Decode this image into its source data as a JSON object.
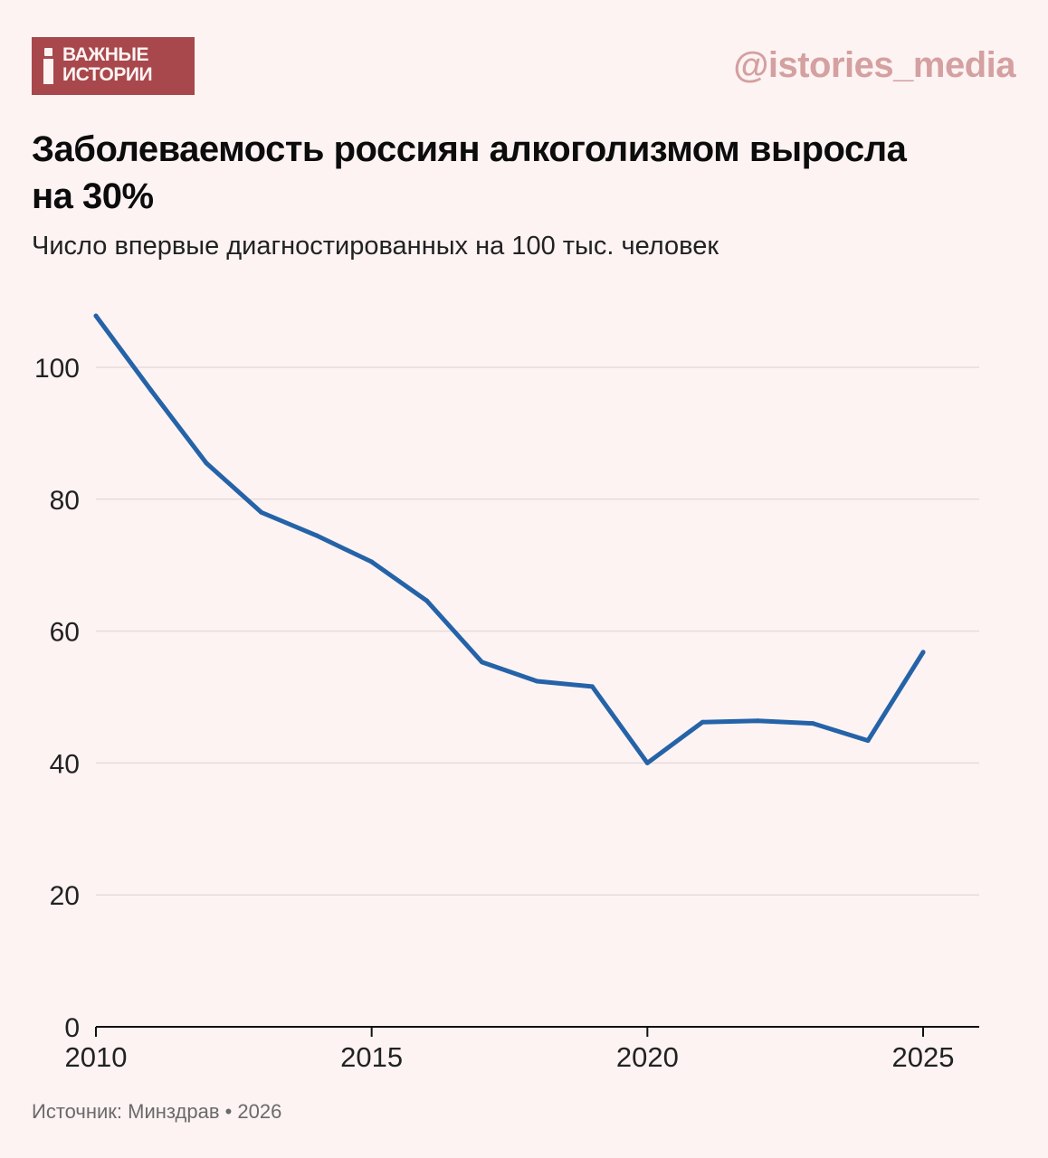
{
  "brand": {
    "logo_line1": "ВАЖНЫЕ",
    "logo_line2": "ИСТОРИИ",
    "handle": "@istories_media",
    "colors": {
      "logo_bg": "#a8484c",
      "handle": "#d4a0a0",
      "background": "#fdf3f3"
    }
  },
  "chart_data": {
    "type": "line",
    "title": "Заболеваемость россиян алкоголизмом выросла на 30%",
    "subtitle": "Число впервые диагностированных на 100 тыс. человек",
    "xlabel": "",
    "ylabel": "",
    "x": [
      2010,
      2011,
      2012,
      2013,
      2014,
      2015,
      2016,
      2017,
      2018,
      2019,
      2020,
      2021,
      2022,
      2023,
      2024,
      2025
    ],
    "series": [
      {
        "name": "Впервые диагностированные на 100 тыс. человек",
        "values": [
          107.8,
          96.5,
          85.5,
          78.0,
          74.5,
          70.5,
          64.6,
          55.3,
          52.4,
          51.6,
          40.0,
          46.2,
          46.4,
          46.0,
          43.4,
          56.8
        ],
        "color": "#2563a8"
      }
    ],
    "xlim": [
      2010,
      2026
    ],
    "ylim": [
      0,
      110
    ],
    "xticks": [
      2010,
      2015,
      2020,
      2025
    ],
    "yticks": [
      0,
      20,
      40,
      60,
      80,
      100
    ],
    "grid": true
  },
  "source": "Источник: Минздрав • 2026"
}
